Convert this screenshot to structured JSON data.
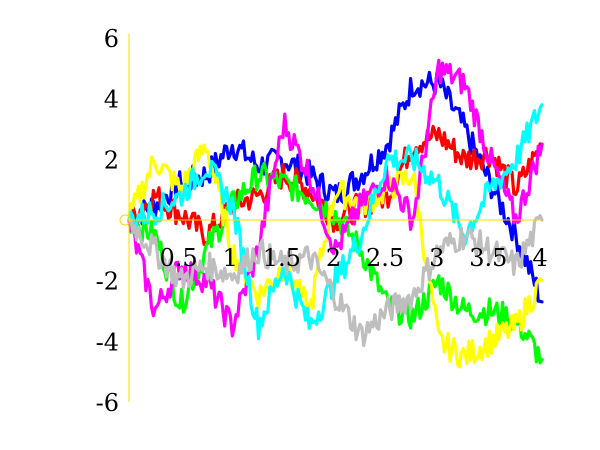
{
  "chart_data": {
    "type": "line",
    "title": "",
    "xlabel": "",
    "ylabel": "",
    "xlim": [
      0,
      4
    ],
    "ylim": [
      -6,
      6
    ],
    "x_ticks": [
      0.5,
      1,
      1.5,
      2,
      2.5,
      3,
      3.5,
      4
    ],
    "x_tick_labels": [
      "0.5",
      "1",
      "1.5",
      "2",
      "2.5",
      "3",
      "3.5",
      "4"
    ],
    "y_ticks": [
      -6,
      -4,
      -2,
      2,
      4,
      6
    ],
    "y_tick_labels": [
      "-6",
      "-4",
      "-2",
      "2",
      "4",
      "6"
    ],
    "grid": false,
    "legend": "none",
    "axis_color": "#ffd700",
    "x": [
      0,
      0.25,
      0.5,
      0.75,
      1,
      1.25,
      1.5,
      1.75,
      2,
      2.25,
      2.5,
      2.75,
      3,
      3.25,
      3.5,
      3.75,
      4
    ],
    "series": [
      {
        "color": "#0000ff",
        "values": [
          0,
          0.5,
          1.2,
          1.5,
          2.5,
          1.8,
          2.0,
          1.5,
          0.8,
          1.5,
          2.5,
          4.5,
          4.5,
          3.0,
          1.2,
          -0.5,
          -2.7
        ]
      },
      {
        "color": "#ff0000",
        "values": [
          0,
          0.8,
          0.2,
          -0.5,
          0.5,
          0.8,
          1.5,
          1.0,
          0.0,
          0.5,
          0.8,
          2.5,
          2.8,
          2.0,
          2.2,
          1.0,
          2.5
        ]
      },
      {
        "color": "#00ff00",
        "values": [
          0,
          -0.5,
          -2.8,
          -1.0,
          0.5,
          1.5,
          1.2,
          0.8,
          0.2,
          -1.0,
          -2.8,
          -3.2,
          -2.0,
          -3.0,
          -3.0,
          -3.3,
          -4.6
        ]
      },
      {
        "color": "#ffff00",
        "values": [
          0,
          2.0,
          1.0,
          2.5,
          -1.0,
          -2.5,
          -1.5,
          -3.0,
          1.0,
          0.5,
          1.0,
          1.5,
          -4.0,
          -4.5,
          -4.0,
          -3.5,
          -2.0
        ]
      },
      {
        "color": "#ff00ff",
        "values": [
          0,
          -3.0,
          -1.5,
          -2.0,
          -3.5,
          -1.0,
          3.2,
          1.5,
          -1.0,
          0.5,
          1.5,
          0.0,
          5.0,
          4.5,
          2.0,
          0.0,
          2.5
        ]
      },
      {
        "color": "#00ffff",
        "values": [
          0,
          0.3,
          0.8,
          1.8,
          0.5,
          -3.5,
          -1.5,
          -3.5,
          -2.0,
          -0.5,
          2.0,
          2.0,
          1.2,
          -0.5,
          1.0,
          2.0,
          3.8
        ]
      },
      {
        "color": "#bebebe",
        "values": [
          0,
          -1.0,
          -2.0,
          -1.5,
          -1.8,
          -1.0,
          -1.5,
          -1.2,
          -2.5,
          -3.8,
          -3.0,
          -2.5,
          -1.0,
          -0.5,
          -1.0,
          -1.5,
          0.0
        ]
      }
    ]
  }
}
